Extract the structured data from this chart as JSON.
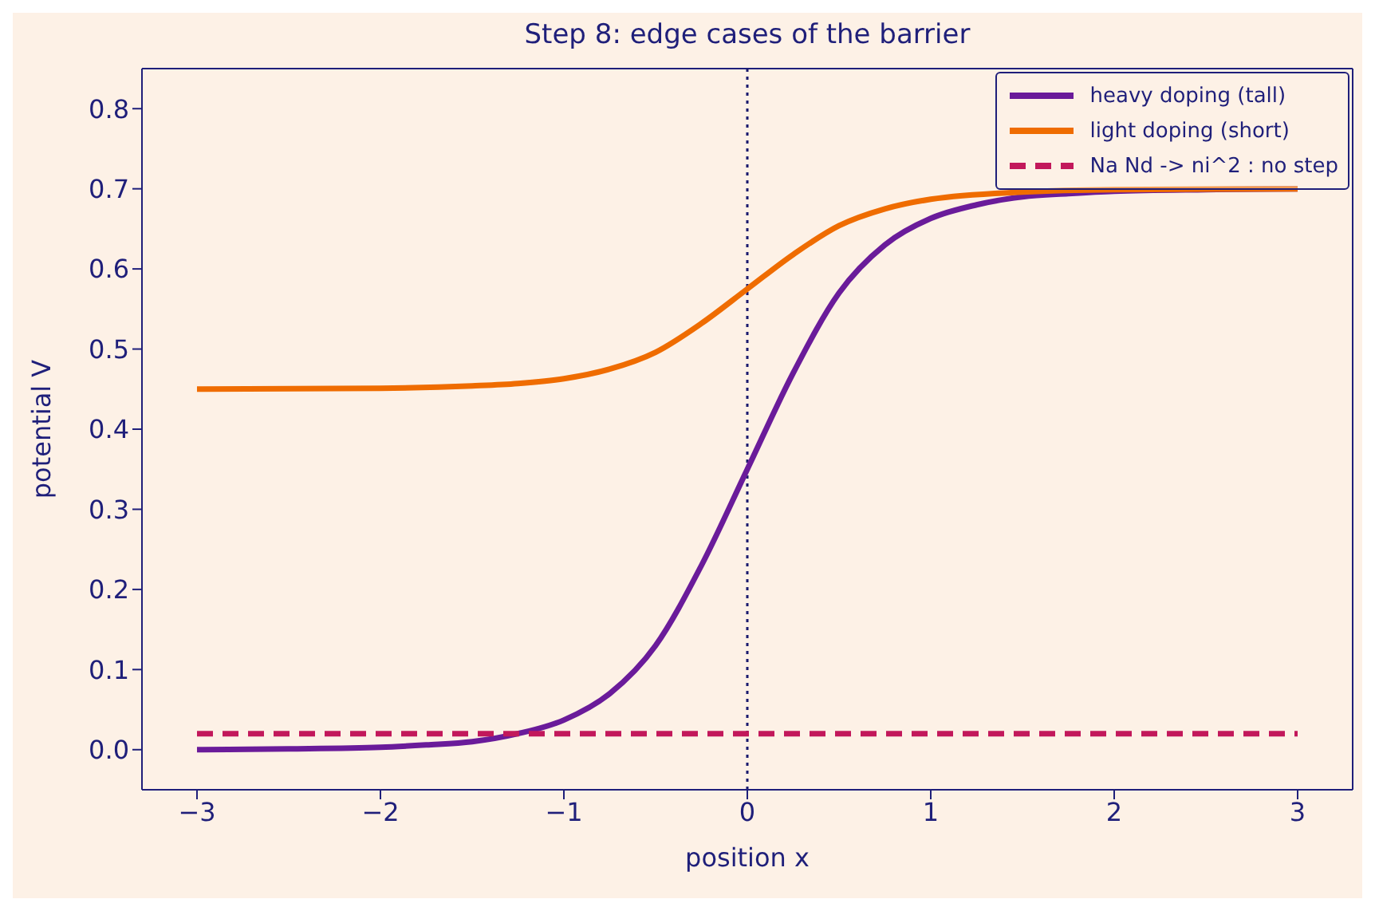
{
  "chart_data": {
    "type": "line",
    "title": "Step 8: edge cases of the barrier",
    "xlabel": "position x",
    "ylabel": "potential V",
    "xlim": [
      -3.3,
      3.3
    ],
    "ylim": [
      -0.05,
      0.85
    ],
    "xticks": [
      {
        "value": -3,
        "label": "−3"
      },
      {
        "value": -2,
        "label": "−2"
      },
      {
        "value": -1,
        "label": "−1"
      },
      0,
      1,
      2,
      3
    ],
    "yticks": [
      {
        "value": 0,
        "label": "0.0"
      },
      0.1,
      0.2,
      0.3,
      0.4,
      0.5,
      0.6,
      0.7,
      0.8
    ],
    "grid": false,
    "legend": "top right",
    "marker": "none",
    "ref_lines": [
      {
        "axis": "x",
        "value": 0,
        "color": "#1a1a6e",
        "line_style": "dotted"
      }
    ],
    "series": [
      {
        "name": "heavy doping (tall)",
        "color": "#6a1b9a",
        "line_style": "solid",
        "x": [
          -3,
          -2.5,
          -2,
          -1.75,
          -1.5,
          -1.25,
          -1,
          -0.75,
          -0.5,
          -0.25,
          0,
          0.25,
          0.5,
          0.75,
          1,
          1.25,
          1.5,
          1.75,
          2,
          2.5,
          3
        ],
        "values": [
          0,
          0.001,
          0.003,
          0.006,
          0.01,
          0.02,
          0.037,
          0.07,
          0.13,
          0.23,
          0.35,
          0.47,
          0.57,
          0.63,
          0.663,
          0.68,
          0.69,
          0.694,
          0.697,
          0.699,
          0.7
        ]
      },
      {
        "name": "light doping (short)",
        "color": "#ef6c00",
        "line_style": "solid",
        "x": [
          -3,
          -2,
          -1.5,
          -1.25,
          -1,
          -0.75,
          -0.5,
          -0.25,
          0,
          0.25,
          0.5,
          0.75,
          1,
          1.5,
          2,
          3
        ],
        "values": [
          0.45,
          0.451,
          0.454,
          0.457,
          0.463,
          0.475,
          0.496,
          0.532,
          0.575,
          0.618,
          0.654,
          0.675,
          0.687,
          0.696,
          0.699,
          0.7
        ]
      },
      {
        "name": "Na Nd -> ni^2 : no step",
        "color": "#c2185b",
        "line_style": "dashed",
        "x": [
          -3,
          3
        ],
        "values": [
          0.02,
          0.02
        ]
      }
    ]
  }
}
